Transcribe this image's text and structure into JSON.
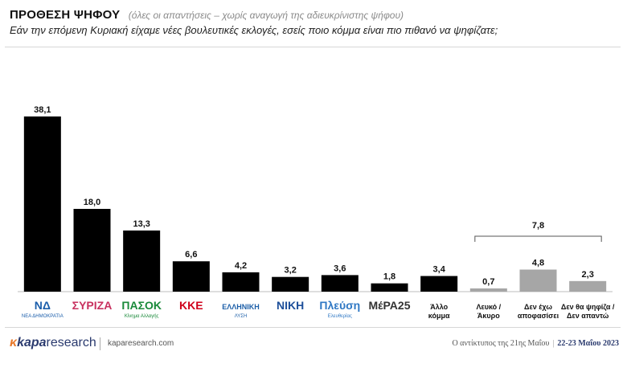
{
  "header": {
    "title": "ΠΡΟΘΕΣΗ ΨΗΦΟΥ",
    "subtitle": "(όλες οι απαντήσεις – χωρίς αναγωγή της αδιευκρίνιστης ψήφου)",
    "question": "Εάν την επόμενη Κυριακή είχαμε νέες βουλευτικές εκλογές, εσείς ποιο κόμμα είναι πιο πιθανό να ψηφίζατε;"
  },
  "chart_data": {
    "type": "bar",
    "title": "ΠΡΟΘΕΣΗ ΨΗΦΟΥ",
    "xlabel": "",
    "ylabel": "",
    "ylim": [
      0,
      40
    ],
    "grid": false,
    "categories": [
      "ΝΔ",
      "ΣΥΡΙΖΑ",
      "ΠΑΣΟΚ",
      "ΚΚΕ",
      "ΕΛΛΗΝΙΚΗ ΛΥΣΗ",
      "ΝΙΚΗ",
      "Πλεύση Ελευθερίας",
      "ΜέΡΑ25",
      "Άλλο κόμμα",
      "Λευκό / Άκυρο",
      "Δεν έχω αποφασίσει",
      "Δεν θα ψηφίζα / Δεν απαντώ"
    ],
    "values": [
      38.1,
      18.0,
      13.3,
      6.6,
      4.2,
      3.2,
      3.6,
      1.8,
      3.4,
      0.7,
      4.8,
      2.3
    ],
    "value_labels": [
      "38,1",
      "18,0",
      "13,3",
      "6,6",
      "4,2",
      "3,2",
      "3,6",
      "1,8",
      "3,4",
      "0,7",
      "4,8",
      "2,3"
    ],
    "bar_colors": [
      "#000000",
      "#000000",
      "#000000",
      "#000000",
      "#000000",
      "#000000",
      "#000000",
      "#000000",
      "#000000",
      "#a6a6a6",
      "#a6a6a6",
      "#a6a6a6"
    ],
    "bracket": {
      "label": "7,8",
      "from_index": 9,
      "to_index": 11
    }
  },
  "x_labels": [
    {
      "kind": "logo",
      "lines": [
        "ΝΔ",
        "ΝΕΑ ΔΗΜΟΚΡΑΤΙΑ"
      ],
      "color": "#1b5eab"
    },
    {
      "kind": "logo",
      "lines": [
        "ΣΥΡΙΖΑ"
      ],
      "color": "#c8315f"
    },
    {
      "kind": "logo",
      "lines": [
        "ΠΑΣΟΚ",
        "Κίνημα Αλλαγής"
      ],
      "color": "#1a8a3a"
    },
    {
      "kind": "logo",
      "lines": [
        "ΚΚΕ"
      ],
      "color": "#d0021b"
    },
    {
      "kind": "logo",
      "lines": [
        "ΕΛΛΗΝΙΚΗ",
        "ΛΥΣΗ"
      ],
      "color": "#1d5fa8"
    },
    {
      "kind": "logo",
      "lines": [
        "ΝΙΚΗ"
      ],
      "color": "#1d4f9a"
    },
    {
      "kind": "logo",
      "lines": [
        "Πλεύση",
        "Ελευθερίας"
      ],
      "color": "#2f78c4"
    },
    {
      "kind": "logo",
      "lines": [
        "ΜέΡΑ25"
      ],
      "color": "#333333"
    },
    {
      "kind": "text",
      "lines": [
        "Άλλο",
        "κόμμα"
      ],
      "color": "#111111"
    },
    {
      "kind": "text",
      "lines": [
        "Λευκό /",
        "Άκυρο"
      ],
      "color": "#111111"
    },
    {
      "kind": "text",
      "lines": [
        "Δεν έχω",
        "αποφασίσει"
      ],
      "color": "#111111"
    },
    {
      "kind": "text",
      "lines": [
        "Δεν θα ψηφίζα /",
        "Δεν απαντώ"
      ],
      "color": "#111111"
    }
  ],
  "footer": {
    "logo_mark": "κ",
    "logo_kapa": "kapa",
    "logo_research": "research",
    "url": "kaparesearch.com",
    "note": "Ο αντίκτυπος της 21ης Μαΐου",
    "dates": "22-23 Μαΐου 2023"
  }
}
